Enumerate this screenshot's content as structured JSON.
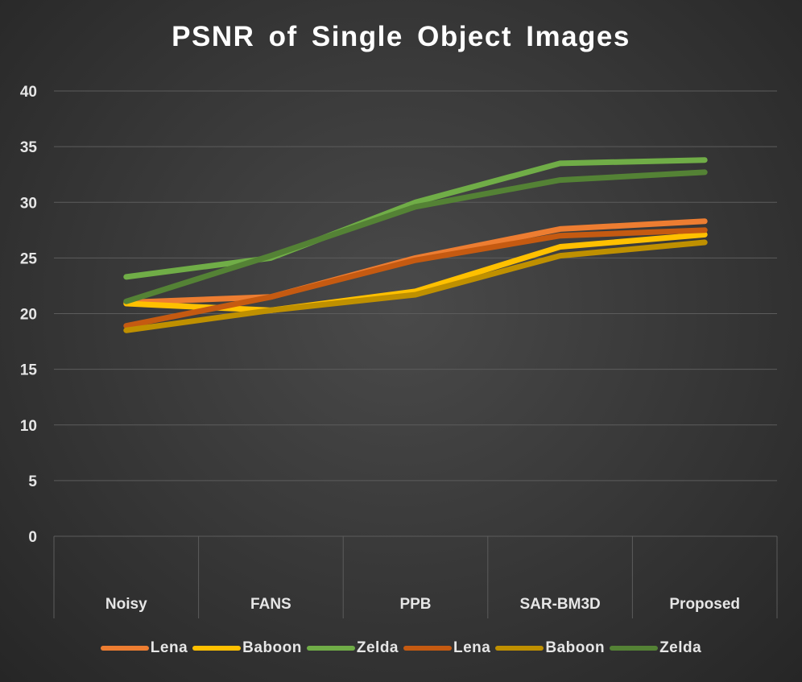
{
  "chart_data": {
    "type": "line",
    "title": "PSNR of Single Object Images",
    "categories": [
      "Noisy",
      "FANS",
      "PPB",
      "SAR-BM3D",
      "Proposed"
    ],
    "ylim": [
      0,
      40
    ],
    "yticks": [
      0,
      5,
      10,
      15,
      20,
      25,
      30,
      35,
      40
    ],
    "grid": true,
    "legend_position": "bottom",
    "series": [
      {
        "name": "Lena",
        "color": "#ed7d31",
        "values": [
          21.0,
          21.5,
          25.0,
          27.6,
          28.3
        ]
      },
      {
        "name": "Baboon",
        "color": "#ffc000",
        "values": [
          20.9,
          20.3,
          22.0,
          26.0,
          27.1
        ]
      },
      {
        "name": "Zelda",
        "color": "#70ad47",
        "values": [
          23.3,
          25.0,
          30.0,
          33.5,
          33.8
        ]
      },
      {
        "name": "Lena",
        "color": "#c55a11",
        "values": [
          18.9,
          21.5,
          24.8,
          27.0,
          27.5
        ]
      },
      {
        "name": "Baboon",
        "color": "#bf9000",
        "values": [
          18.5,
          20.3,
          21.7,
          25.2,
          26.4
        ]
      },
      {
        "name": "Zelda",
        "color": "#548235",
        "values": [
          21.1,
          25.2,
          29.6,
          32.0,
          32.7
        ]
      }
    ]
  }
}
